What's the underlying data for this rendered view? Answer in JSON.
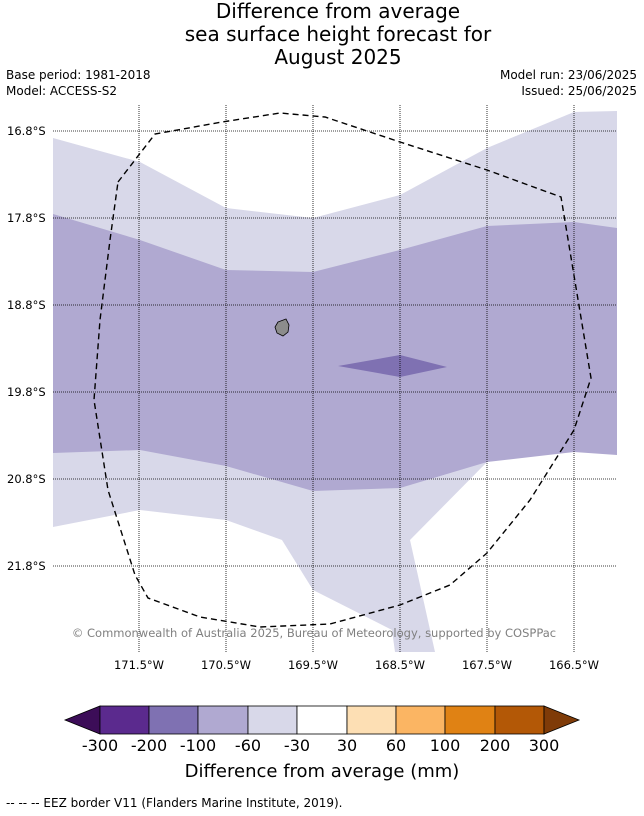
{
  "title_lines": [
    "Difference from average",
    "sea surface height forecast for",
    "August 2025"
  ],
  "meta": {
    "base_period": "Base period: 1981-2018",
    "model": "Model: ACCESS-S2",
    "model_run": "Model run: 23/06/2025",
    "issued": "Issued: 25/06/2025"
  },
  "map": {
    "lat_labels": [
      "16.8°S",
      "17.8°S",
      "18.8°S",
      "19.8°S",
      "20.8°S",
      "21.8°S"
    ],
    "lon_labels": [
      "171.5°W",
      "170.5°W",
      "169.5°W",
      "168.5°W",
      "167.5°W",
      "166.5°W"
    ],
    "copyright": "© Commonwealth of Australia 2025, Bureau of Meteorology, supported by COSPPac",
    "fill_colors": {
      "band_-30_-60": "#d8d8e9",
      "band_-60_-100": "#b0a9d1",
      "band_-100_-200": "#7f71b2"
    },
    "land_color": "#8c8c8c",
    "eez_border_style": "dashed"
  },
  "colorbar": {
    "ticks": [
      "-300",
      "-200",
      "-100",
      "-60",
      "-30",
      "30",
      "60",
      "100",
      "200",
      "300"
    ],
    "colors": [
      "#3c0d58",
      "#5b2a8e",
      "#7f71b2",
      "#b0a9d1",
      "#d8d8e9",
      "#ffffff",
      "#fddfb4",
      "#fbb563",
      "#e08214",
      "#b35806",
      "#7f3b08"
    ],
    "label": "Difference from average (mm)"
  },
  "footer": "--  --  -- EEZ border V11 (Flanders Marine Institute, 2019)."
}
